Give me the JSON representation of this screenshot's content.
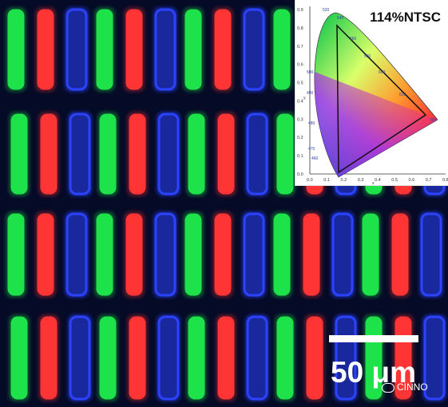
{
  "figure": {
    "gamut_label": "114%NTSC",
    "scale_bar_label": "50 μm",
    "watermark": "CINNO",
    "subpixel_colors": {
      "green": "#1ee24a",
      "red": "#ff3434",
      "blue": "#2b43ff",
      "background": "#050a26"
    },
    "cie_inset": {
      "y_ticks": [
        "0.9",
        "0.8",
        "0.7",
        "0.6",
        "0.5",
        "0.4",
        "0.3",
        "0.2",
        "0.1",
        "0.0"
      ],
      "x_ticks": [
        "0.0",
        "0.1",
        "0.2",
        "0.3",
        "0.4",
        "0.5",
        "0.6",
        "0.7",
        "0.8"
      ],
      "y_axis_label": "y",
      "x_axis_label": "x",
      "wavelength_labels": [
        "520",
        "540",
        "560",
        "580",
        "600",
        "620",
        "700",
        "500",
        "490",
        "480",
        "470",
        "460"
      ]
    }
  }
}
